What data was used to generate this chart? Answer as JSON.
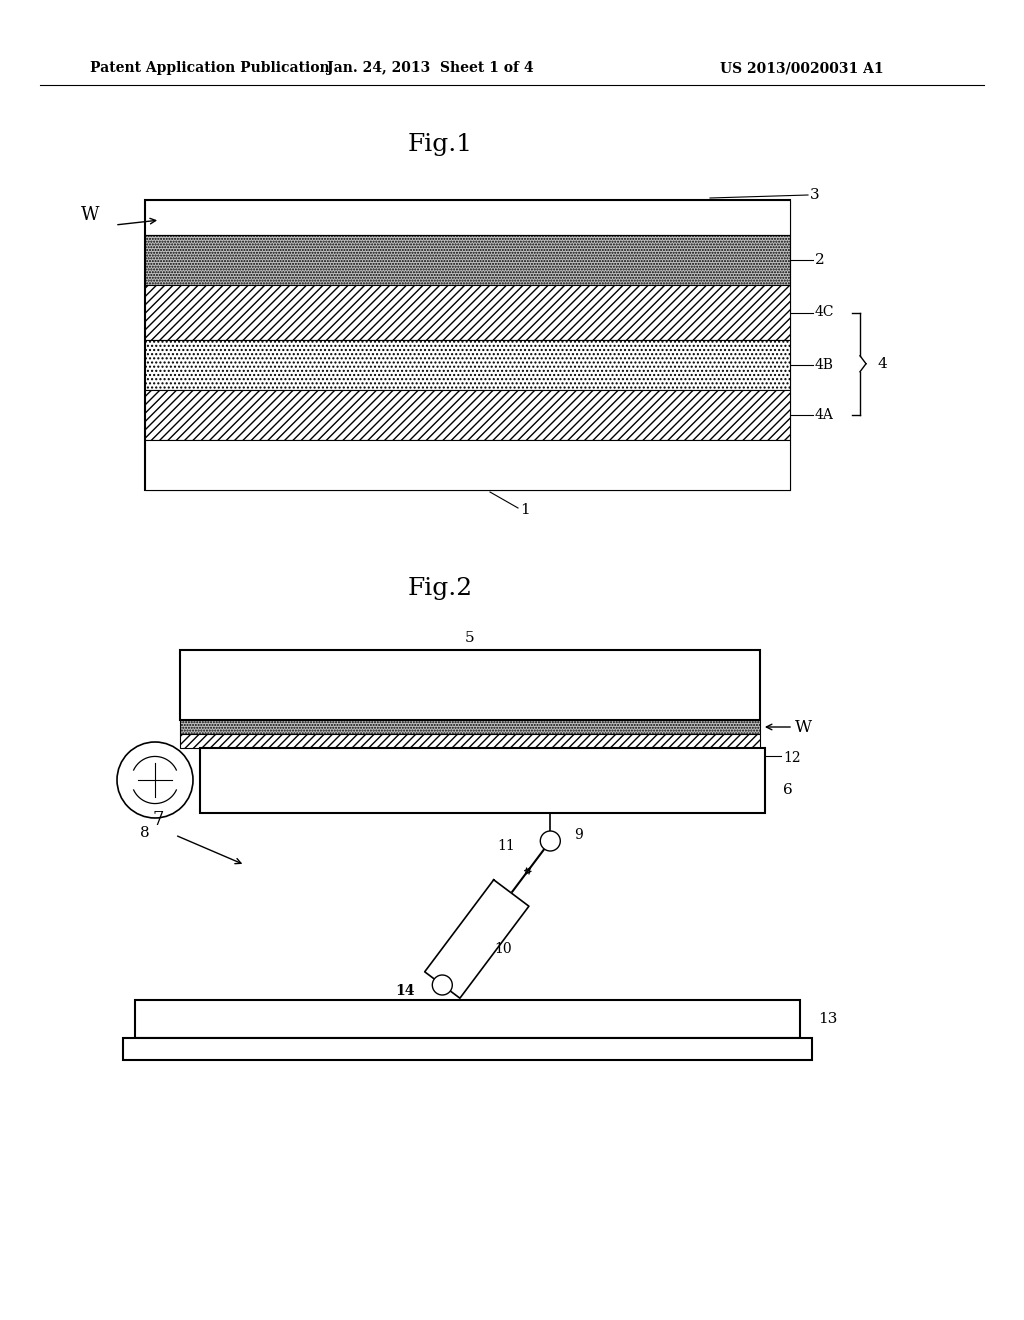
{
  "header_left": "Patent Application Publication",
  "header_center": "Jan. 24, 2013  Sheet 1 of 4",
  "header_right": "US 2013/0020031 A1",
  "fig1_title": "Fig.1",
  "fig2_title": "Fig.2",
  "bg_color": "#ffffff",
  "line_color": "#000000"
}
